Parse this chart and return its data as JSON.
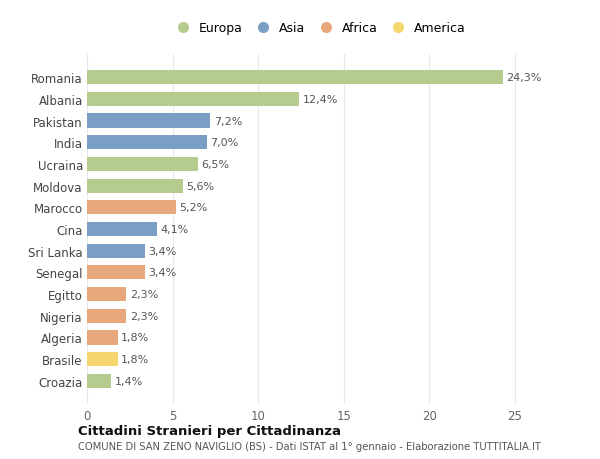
{
  "countries": [
    "Romania",
    "Albania",
    "Pakistan",
    "India",
    "Ucraina",
    "Moldova",
    "Marocco",
    "Cina",
    "Sri Lanka",
    "Senegal",
    "Egitto",
    "Nigeria",
    "Algeria",
    "Brasile",
    "Croazia"
  ],
  "values": [
    24.3,
    12.4,
    7.2,
    7.0,
    6.5,
    5.6,
    5.2,
    4.1,
    3.4,
    3.4,
    2.3,
    2.3,
    1.8,
    1.8,
    1.4
  ],
  "labels": [
    "24,3%",
    "12,4%",
    "7,2%",
    "7,0%",
    "6,5%",
    "5,6%",
    "5,2%",
    "4,1%",
    "3,4%",
    "3,4%",
    "2,3%",
    "2,3%",
    "1,8%",
    "1,8%",
    "1,4%"
  ],
  "continents": [
    "Europa",
    "Europa",
    "Asia",
    "Asia",
    "Europa",
    "Europa",
    "Africa",
    "Asia",
    "Asia",
    "Africa",
    "Africa",
    "Africa",
    "Africa",
    "America",
    "Europa"
  ],
  "colors": {
    "Europa": "#b5cc8e",
    "Asia": "#7b9ec5",
    "Africa": "#e8a87c",
    "America": "#f5d76e"
  },
  "title": "Cittadini Stranieri per Cittadinanza",
  "subtitle": "COMUNE DI SAN ZENO NAVIGLIO (BS) - Dati ISTAT al 1° gennaio - Elaborazione TUTTITALIA.IT",
  "xlim": [
    0,
    27
  ],
  "xticks": [
    0,
    5,
    10,
    15,
    20,
    25
  ],
  "bg_color": "#ffffff",
  "grid_color": "#e8e8e8",
  "bar_height": 0.65
}
